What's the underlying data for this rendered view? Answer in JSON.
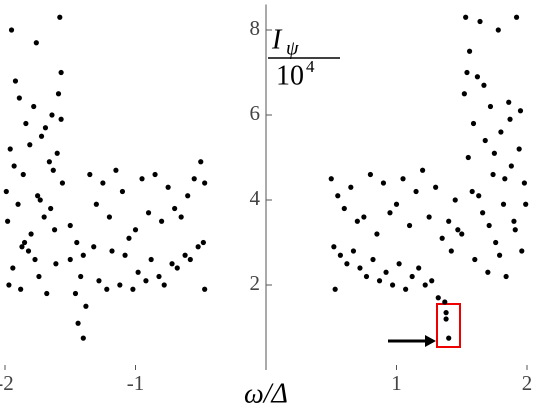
{
  "chart_data": {
    "type": "scatter",
    "y_label_symbol": "I",
    "y_label_subscript": "ψ",
    "y_label_denominator_base": "10",
    "y_label_denominator_exponent": "4",
    "xlabel": "ω/Δ",
    "color": "#000000",
    "xlim": [
      -2,
      2
    ],
    "ylim": [
      0,
      8.6
    ],
    "xticks": [
      -2,
      -1,
      1,
      2
    ],
    "yticks": [
      2,
      4,
      6,
      8
    ],
    "x": [
      -1.98,
      -1.96,
      -1.95,
      -1.94,
      -1.92,
      -1.9,
      -1.88,
      -1.86,
      -1.84,
      -1.82,
      -1.8,
      -1.78,
      -1.76,
      -1.75,
      -1.74,
      -1.72,
      -1.7,
      -1.68,
      -1.66,
      -1.64,
      -1.62,
      -1.6,
      -1.58,
      -1.57,
      -1.56,
      -1.97,
      -1.93,
      -1.89,
      -1.85,
      -1.81,
      -1.77,
      -1.73,
      -1.69,
      -1.65,
      -1.61,
      -1.59,
      -1.57,
      -1.99,
      -1.87,
      -1.63,
      -1.5,
      -1.45,
      -1.4,
      -1.35,
      -1.3,
      -1.25,
      -1.2,
      -1.15,
      -1.1,
      -1.05,
      -1.0,
      -0.95,
      -0.9,
      -0.85,
      -0.8,
      -0.75,
      -0.7,
      -0.65,
      -0.6,
      -0.55,
      -0.5,
      -0.47,
      -1.5,
      -1.42,
      -1.38,
      -1.32,
      -1.28,
      -1.22,
      -1.18,
      -1.12,
      -1.08,
      -1.02,
      -0.98,
      -0.92,
      -0.88,
      -0.82,
      -0.78,
      -0.72,
      -0.68,
      -0.62,
      -0.58,
      -0.52,
      -0.48,
      -0.47,
      -1.4,
      -1.44,
      -1.46,
      0.5,
      0.55,
      0.6,
      0.65,
      0.7,
      0.75,
      0.8,
      0.85,
      0.9,
      0.95,
      1.0,
      1.05,
      1.1,
      1.15,
      1.2,
      1.25,
      1.3,
      1.35,
      1.4,
      1.45,
      0.52,
      0.57,
      0.62,
      0.67,
      0.72,
      0.77,
      0.82,
      0.87,
      0.92,
      0.97,
      1.02,
      1.07,
      1.12,
      1.17,
      1.22,
      1.27,
      1.32,
      1.37,
      1.42,
      1.47,
      0.53,
      1.38,
      1.38,
      1.4,
      1.5,
      1.52,
      1.53,
      1.55,
      1.56,
      1.58,
      1.6,
      1.62,
      1.64,
      1.66,
      1.68,
      1.7,
      1.72,
      1.74,
      1.76,
      1.78,
      1.8,
      1.82,
      1.84,
      1.86,
      1.88,
      1.9,
      1.92,
      1.94,
      1.96,
      1.98,
      1.99,
      1.54,
      1.59,
      1.63,
      1.67,
      1.71,
      1.75,
      1.79,
      1.83,
      1.87,
      1.91,
      1.95
    ],
    "values": [
      3.5,
      5.2,
      8.0,
      2.4,
      6.8,
      3.9,
      1.9,
      4.6,
      5.8,
      2.8,
      3.2,
      6.2,
      7.7,
      4.1,
      2.2,
      5.5,
      3.6,
      1.8,
      4.9,
      6.0,
      3.3,
      5.1,
      8.3,
      7.0,
      4.4,
      2.0,
      4.8,
      6.4,
      3.0,
      5.3,
      2.6,
      4.0,
      5.7,
      3.8,
      2.5,
      6.5,
      5.9,
      4.2,
      2.9,
      4.7,
      3.4,
      3.0,
      2.7,
      4.6,
      3.9,
      4.4,
      3.6,
      4.7,
      4.2,
      3.1,
      3.3,
      4.5,
      3.7,
      4.6,
      3.5,
      4.3,
      3.8,
      3.6,
      4.1,
      4.5,
      4.9,
      4.4,
      2.6,
      2.2,
      1.5,
      2.9,
      2.1,
      1.9,
      2.8,
      2.0,
      2.7,
      1.9,
      2.3,
      2.1,
      2.6,
      2.2,
      2.0,
      2.5,
      2.4,
      2.7,
      2.6,
      2.9,
      3.0,
      1.9,
      0.75,
      1.1,
      1.8,
      4.5,
      4.1,
      3.8,
      4.3,
      3.5,
      3.6,
      4.6,
      3.2,
      4.4,
      3.7,
      3.9,
      4.5,
      3.4,
      4.2,
      4.7,
      3.6,
      4.3,
      3.1,
      3.5,
      4.0,
      2.9,
      2.7,
      2.5,
      2.8,
      2.4,
      2.2,
      2.6,
      2.1,
      2.3,
      2.0,
      2.5,
      1.9,
      2.2,
      2.4,
      2.0,
      2.1,
      1.7,
      1.6,
      2.8,
      3.3,
      1.9,
      1.35,
      1.2,
      0.75,
      3.2,
      6.5,
      8.3,
      5.0,
      7.5,
      4.2,
      2.6,
      6.9,
      8.2,
      3.7,
      5.4,
      2.3,
      6.2,
      4.6,
      3.0,
      8.0,
      5.6,
      3.9,
      2.2,
      6.3,
      4.8,
      3.5,
      8.3,
      5.2,
      2.8,
      4.4,
      3.9,
      7.0,
      5.8,
      4.1,
      6.7,
      3.4,
      5.1,
      2.7,
      4.5,
      5.9,
      3.3,
      6.1
    ]
  }
}
